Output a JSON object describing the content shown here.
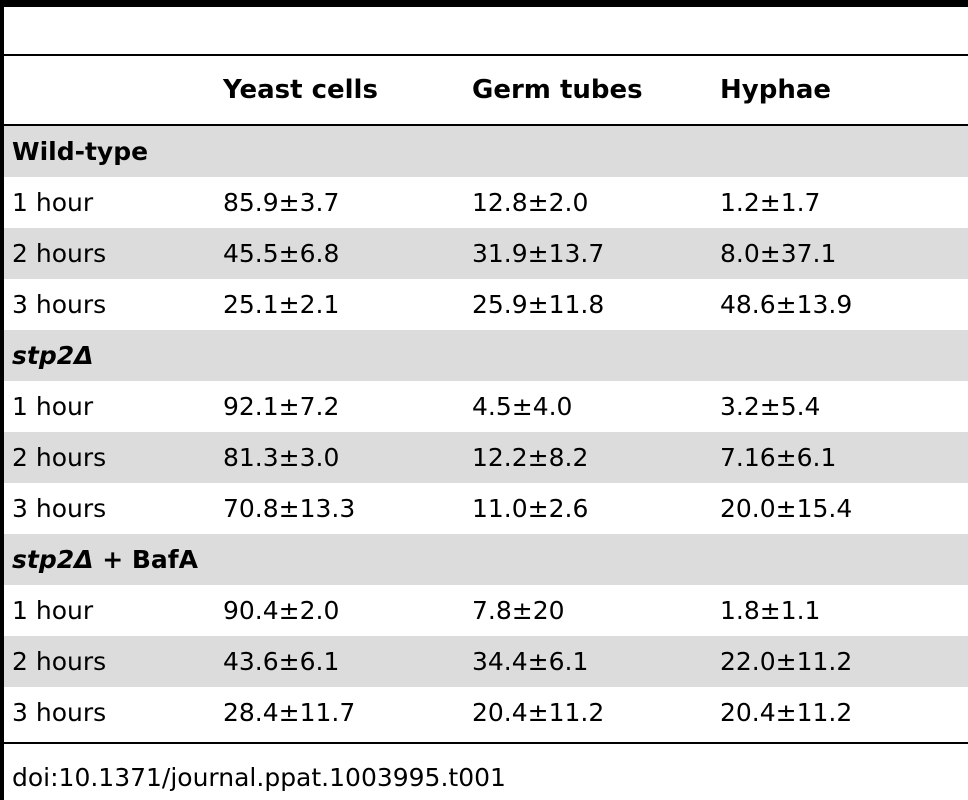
{
  "table": {
    "columns": [
      "",
      "Yeast cells",
      "Germ tubes",
      "Hyphae"
    ],
    "sections": [
      {
        "title": "Wild-type",
        "title_italic": "",
        "title_rest": "Wild-type",
        "rows": [
          {
            "label": "1 hour",
            "values": [
              "85.9±3.7",
              "12.8±2.0",
              "1.2±1.7"
            ]
          },
          {
            "label": "2 hours",
            "values": [
              "45.5±6.8",
              "31.9±13.7",
              "8.0±37.1"
            ]
          },
          {
            "label": "3 hours",
            "values": [
              "25.1±2.1",
              "25.9±11.8",
              "48.6±13.9"
            ]
          }
        ]
      },
      {
        "title": "stp2Δ",
        "title_italic": "stp2Δ",
        "title_rest": "",
        "rows": [
          {
            "label": "1 hour",
            "values": [
              "92.1±7.2",
              "4.5±4.0",
              "3.2±5.4"
            ]
          },
          {
            "label": "2 hours",
            "values": [
              "81.3±3.0",
              "12.2±8.2",
              "7.16±6.1"
            ]
          },
          {
            "label": "3 hours",
            "values": [
              "70.8±13.3",
              "11.0±2.6",
              "20.0±15.4"
            ]
          }
        ]
      },
      {
        "title": "stp2Δ + BafA",
        "title_italic": "stp2Δ",
        "title_rest": " + BafA",
        "rows": [
          {
            "label": "1 hour",
            "values": [
              "90.4±2.0",
              "7.8±20",
              "1.8±1.1"
            ]
          },
          {
            "label": "2 hours",
            "values": [
              "43.6±6.1",
              "34.4±6.1",
              "22.0±11.2"
            ]
          },
          {
            "label": "3 hours",
            "values": [
              "28.4±11.7",
              "20.4±11.2",
              "20.4±11.2"
            ]
          }
        ]
      }
    ]
  },
  "caption": "doi:10.1371/journal.ppat.1003995.t001",
  "colors": {
    "shade": "#dcdcdc",
    "rule": "#000000",
    "text": "#000000"
  }
}
